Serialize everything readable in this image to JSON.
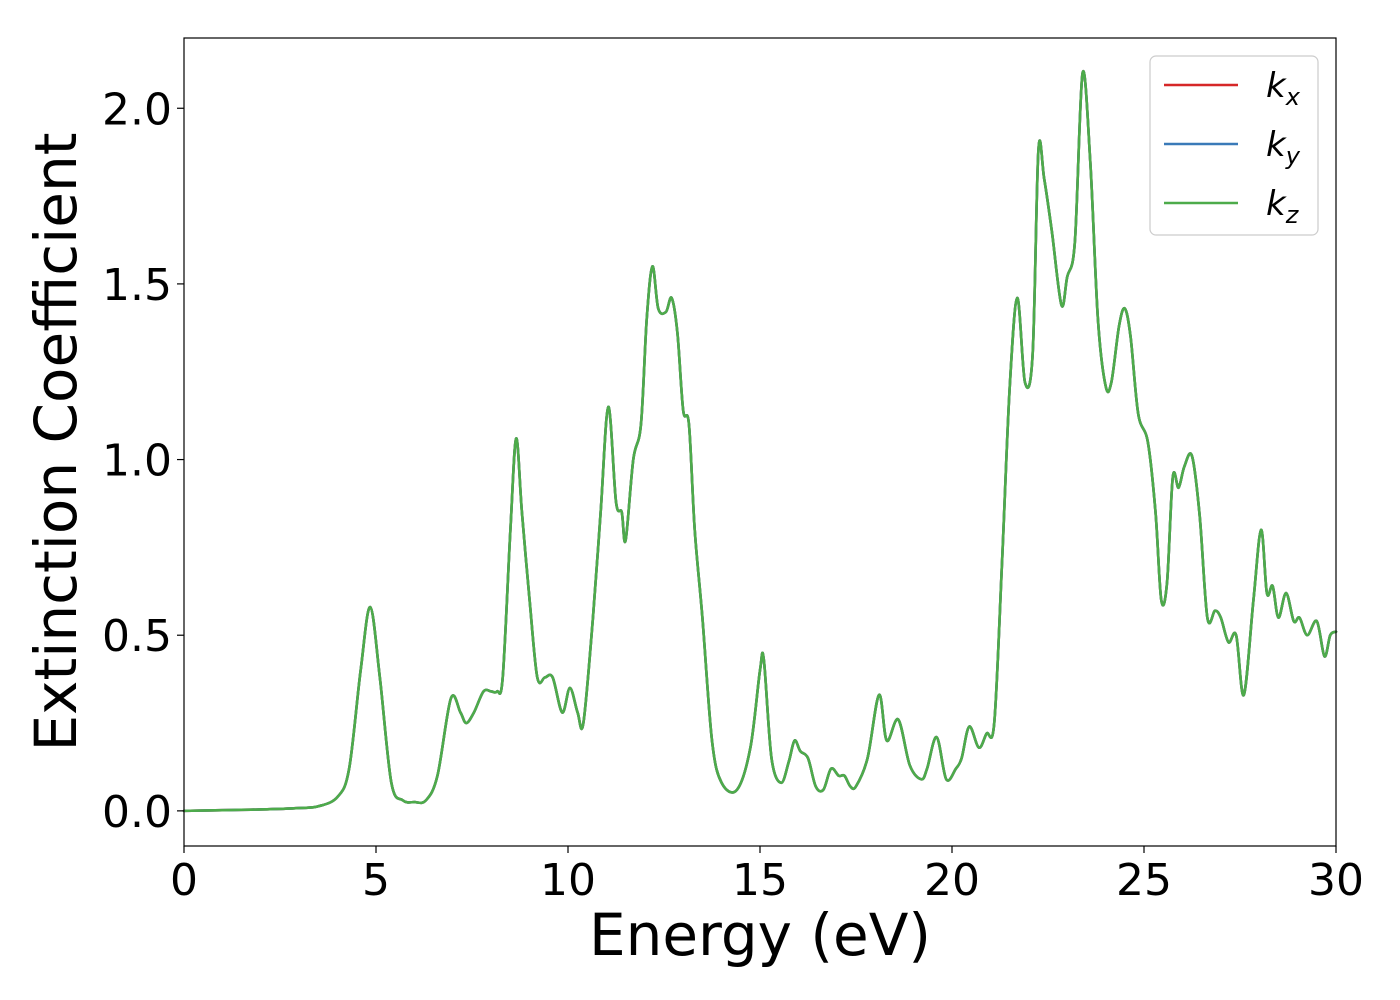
{
  "chart_data": {
    "type": "line",
    "title": "",
    "xlabel": "Energy (eV)",
    "ylabel": "Extinction Coefficient",
    "xlim": [
      0,
      30
    ],
    "ylim": [
      -0.1,
      2.2
    ],
    "xticks": [
      0,
      5,
      10,
      15,
      20,
      25,
      30
    ],
    "xtick_labels": [
      "0",
      "5",
      "10",
      "15",
      "20",
      "25",
      "30"
    ],
    "yticks": [
      0.0,
      0.5,
      1.0,
      1.5,
      2.0
    ],
    "ytick_labels": [
      "0.0",
      "0.5",
      "1.0",
      "1.5",
      "2.0"
    ],
    "grid": false,
    "legend_position": "top-right",
    "series": [
      {
        "name": "k",
        "subscript": "x",
        "color": "#d62728"
      },
      {
        "name": "k",
        "subscript": "y",
        "color": "#3a7ab8"
      },
      {
        "name": "k",
        "subscript": "z",
        "color": "#4dab4a"
      }
    ],
    "x": [
      0,
      1,
      2,
      3,
      3.5,
      4,
      4.3,
      4.6,
      4.85,
      5.1,
      5.4,
      5.7,
      6.0,
      6.3,
      6.6,
      6.95,
      7.2,
      7.35,
      7.55,
      7.8,
      8.0,
      8.15,
      8.3,
      8.5,
      8.65,
      8.8,
      9.0,
      9.2,
      9.4,
      9.6,
      9.85,
      10.05,
      10.25,
      10.4,
      10.65,
      10.85,
      11.05,
      11.25,
      11.4,
      11.5,
      11.7,
      11.9,
      12.05,
      12.2,
      12.35,
      12.55,
      12.7,
      12.85,
      13.0,
      13.15,
      13.3,
      13.5,
      13.75,
      14.0,
      14.4,
      14.75,
      15.0,
      15.1,
      15.3,
      15.55,
      15.75,
      15.9,
      16.05,
      16.25,
      16.45,
      16.65,
      16.85,
      17.05,
      17.2,
      17.35,
      17.5,
      17.8,
      18.1,
      18.3,
      18.6,
      18.9,
      19.2,
      19.35,
      19.6,
      19.85,
      20.1,
      20.25,
      20.45,
      20.7,
      20.9,
      21.1,
      21.3,
      21.5,
      21.7,
      21.9,
      22.1,
      22.25,
      22.4,
      22.6,
      22.85,
      23.0,
      23.2,
      23.4,
      23.6,
      23.8,
      24.0,
      24.15,
      24.35,
      24.5,
      24.65,
      24.85,
      25.1,
      25.3,
      25.45,
      25.6,
      25.75,
      25.9,
      26.05,
      26.25,
      26.45,
      26.65,
      26.85,
      27.0,
      27.2,
      27.4,
      27.6,
      27.85,
      28.05,
      28.2,
      28.35,
      28.5,
      28.7,
      28.9,
      29.05,
      29.25,
      29.5,
      29.7,
      29.85,
      30.0
    ],
    "values": [
      0.0,
      0.002,
      0.004,
      0.008,
      0.013,
      0.04,
      0.12,
      0.4,
      0.58,
      0.38,
      0.08,
      0.03,
      0.025,
      0.03,
      0.1,
      0.32,
      0.28,
      0.25,
      0.28,
      0.34,
      0.34,
      0.34,
      0.38,
      0.8,
      1.06,
      0.85,
      0.6,
      0.38,
      0.38,
      0.38,
      0.28,
      0.35,
      0.28,
      0.25,
      0.55,
      0.85,
      1.15,
      0.88,
      0.85,
      0.77,
      1.0,
      1.1,
      1.4,
      1.55,
      1.43,
      1.42,
      1.46,
      1.36,
      1.14,
      1.1,
      0.8,
      0.55,
      0.2,
      0.08,
      0.06,
      0.18,
      0.4,
      0.43,
      0.15,
      0.08,
      0.14,
      0.2,
      0.17,
      0.15,
      0.07,
      0.06,
      0.12,
      0.1,
      0.1,
      0.07,
      0.07,
      0.15,
      0.33,
      0.2,
      0.26,
      0.13,
      0.09,
      0.12,
      0.21,
      0.09,
      0.12,
      0.15,
      0.24,
      0.18,
      0.22,
      0.25,
      0.7,
      1.2,
      1.46,
      1.22,
      1.3,
      1.88,
      1.8,
      1.65,
      1.44,
      1.52,
      1.62,
      2.1,
      1.85,
      1.4,
      1.21,
      1.22,
      1.38,
      1.43,
      1.35,
      1.13,
      1.05,
      0.85,
      0.6,
      0.65,
      0.95,
      0.92,
      0.98,
      1.01,
      0.84,
      0.55,
      0.57,
      0.55,
      0.48,
      0.5,
      0.33,
      0.6,
      0.8,
      0.62,
      0.64,
      0.55,
      0.62,
      0.54,
      0.55,
      0.5,
      0.54,
      0.44,
      0.5,
      0.51
    ]
  }
}
